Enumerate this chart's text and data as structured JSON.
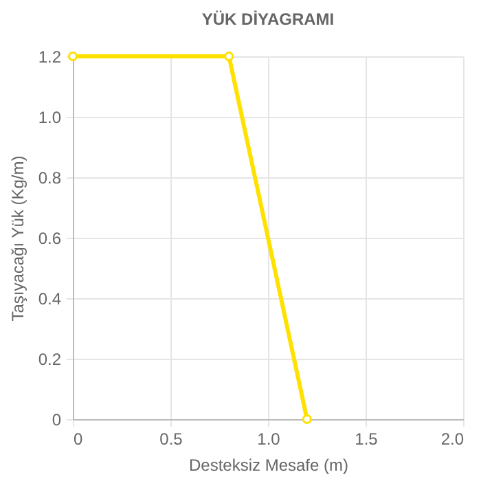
{
  "chart_data": {
    "type": "line",
    "title": "YÜK DİYAGRAMI",
    "xlabel": "Desteksiz Mesafe (m)",
    "ylabel": "Taşıyacağı Yük (Kg/m)",
    "x": [
      0,
      0.8,
      1.2
    ],
    "series": [
      {
        "color": "#ffe100",
        "values": [
          1.2,
          1.2,
          0
        ]
      }
    ],
    "xlim": [
      0,
      2
    ],
    "xticks": [
      0,
      0.5,
      {
        "value": 1,
        "label": "1.0"
      },
      1.5,
      {
        "value": 2,
        "label": "2.0"
      }
    ],
    "ylim": [
      0,
      1.2
    ],
    "yticks": [
      0,
      0.2,
      0.4,
      0.6,
      0.8,
      {
        "value": 1,
        "label": "1.0"
      },
      1.2
    ],
    "grid": true,
    "marker": "circle",
    "line_style": "solid"
  }
}
